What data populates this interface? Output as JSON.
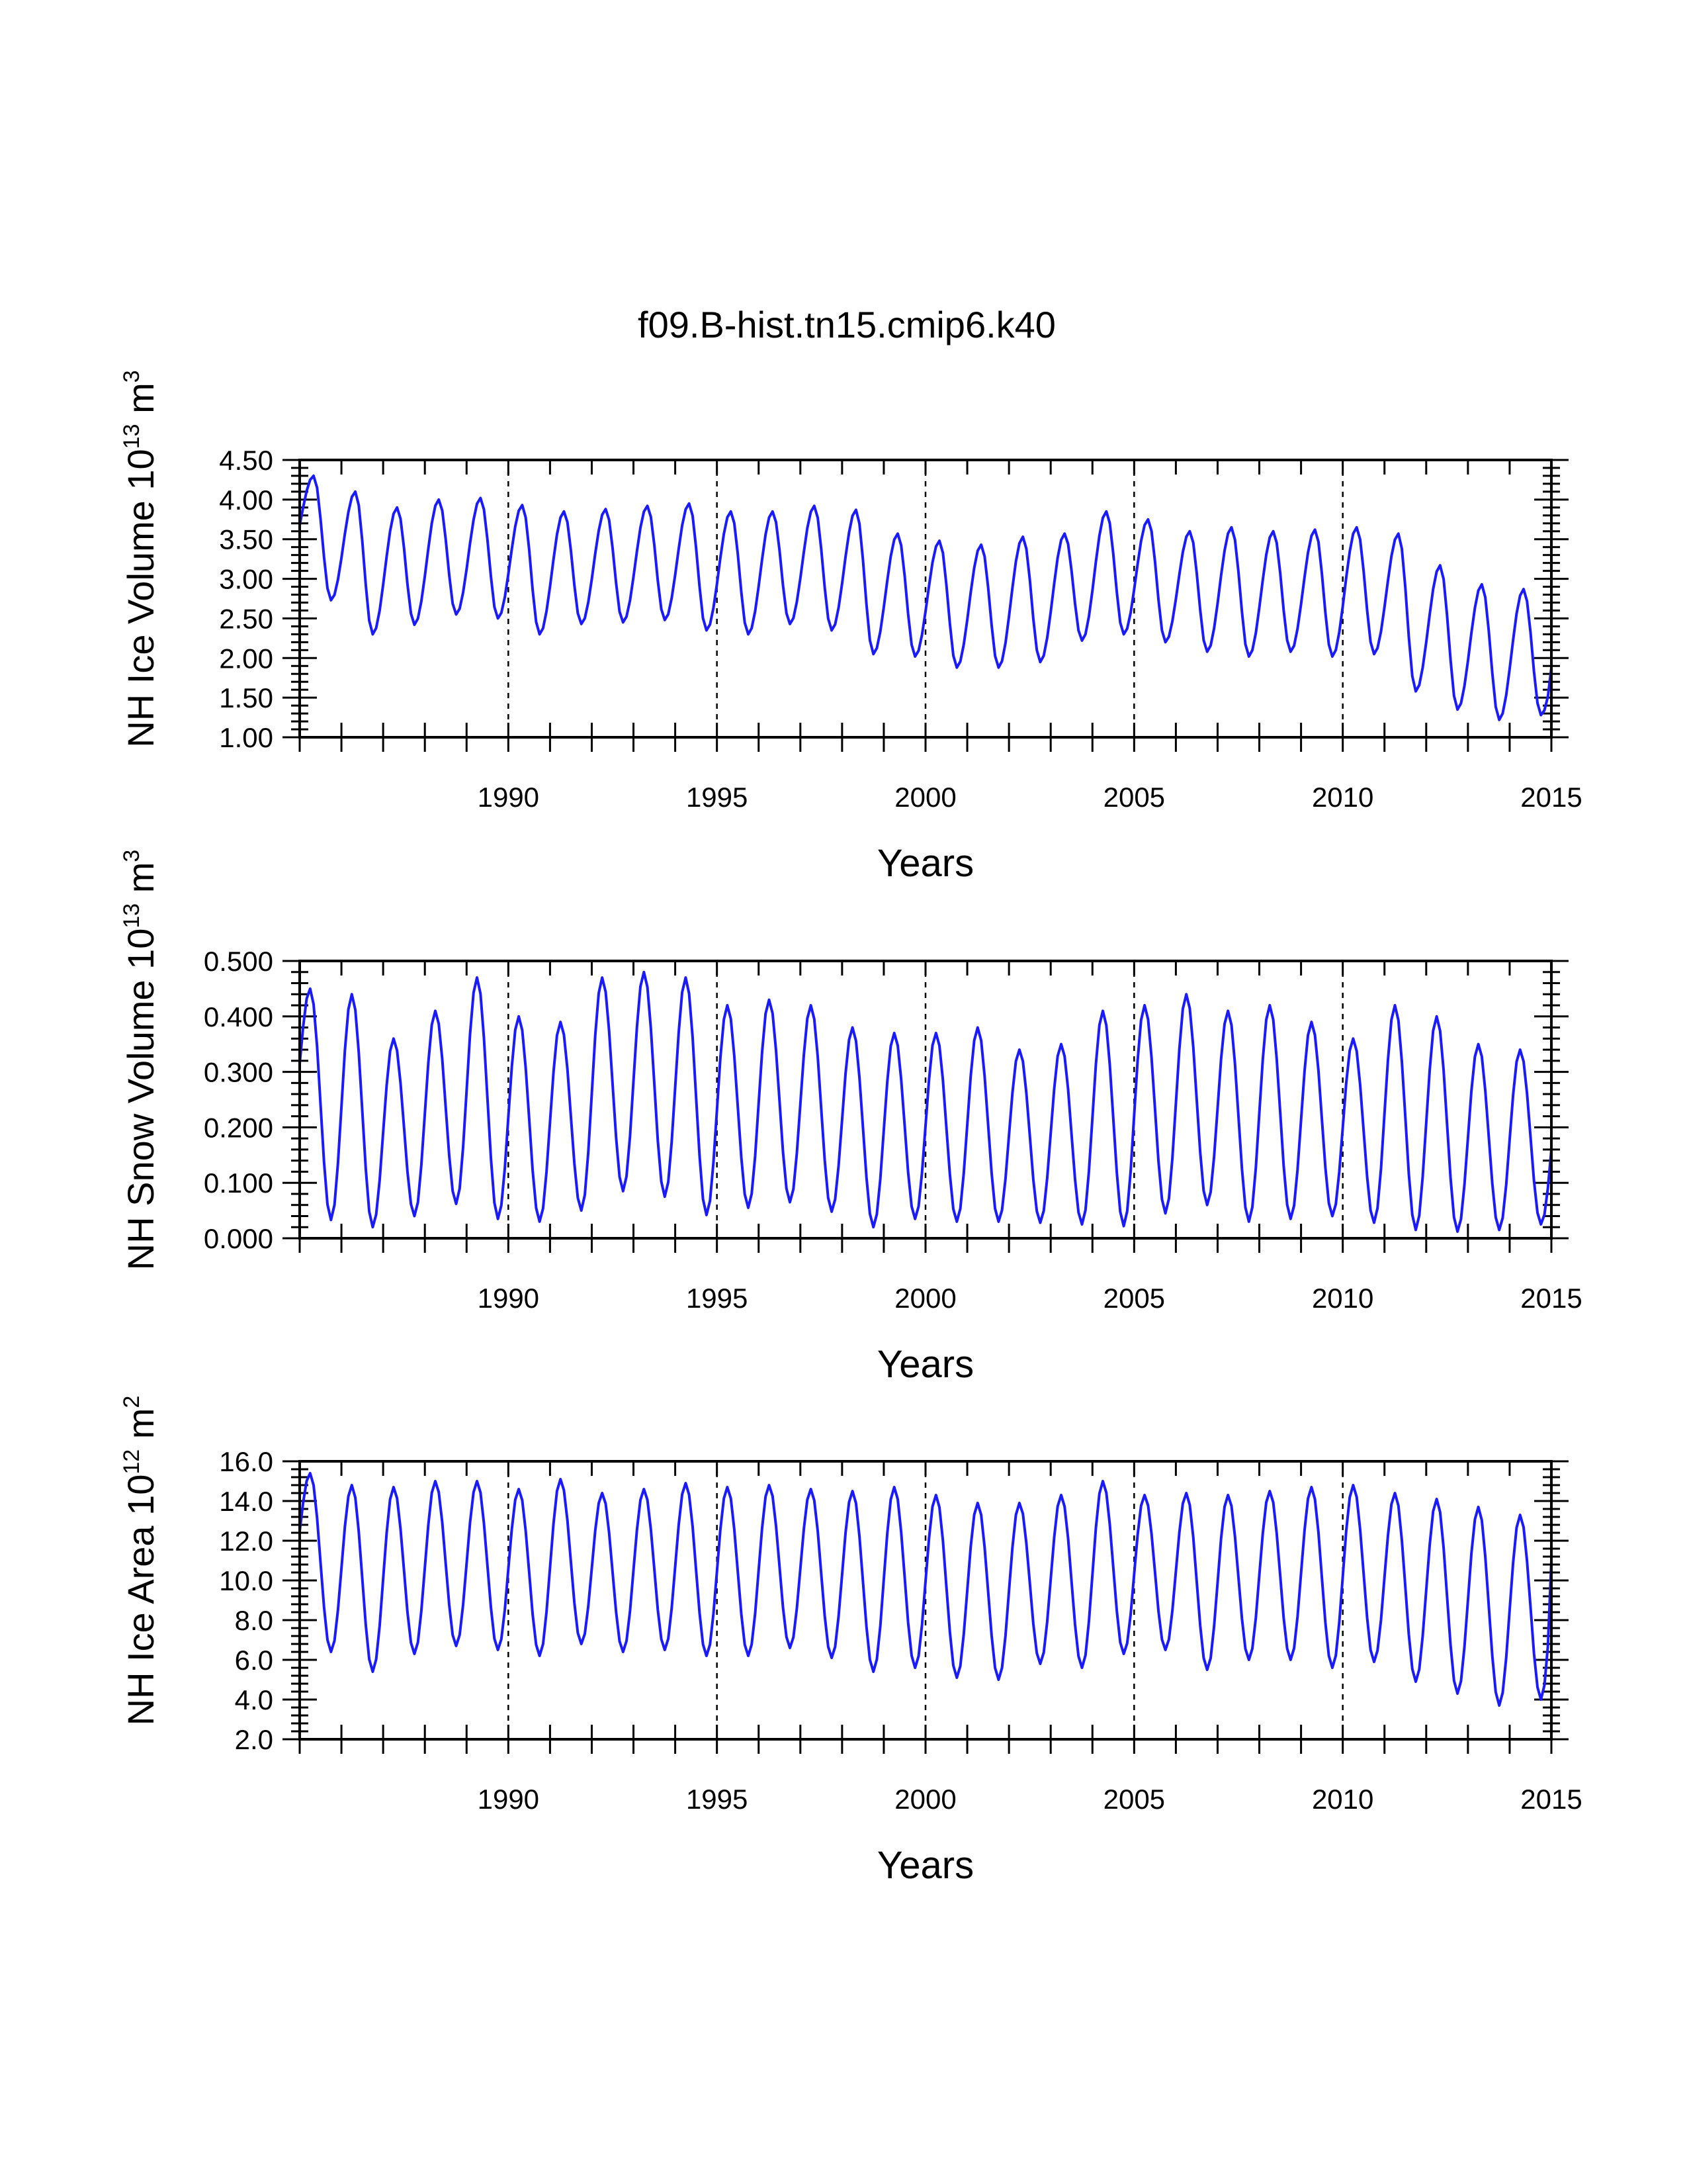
{
  "figure_title": "f09.B-hist.tn15.cmip6.k40",
  "colors": {
    "line": "#1a1aff",
    "axes": "#000000"
  },
  "chart_data": [
    {
      "type": "line",
      "ylabel": "NH Ice Volume 10",
      "ylabel_exponent": "13",
      "ylabel_unit": "m",
      "ylabel_unit_exponent": "3",
      "xlabel": "Years",
      "xlim": [
        1985,
        2015
      ],
      "ylim": [
        1.0,
        4.5
      ],
      "yticks": [
        "1.00",
        "1.50",
        "2.00",
        "2.50",
        "3.00",
        "3.50",
        "4.00",
        "4.50"
      ],
      "xticks": [
        "1990",
        "1995",
        "2000",
        "2005",
        "2010",
        "2015"
      ],
      "grid_years": [
        1990,
        1995,
        2000,
        2005,
        2010
      ],
      "series": [
        {
          "name": "NH Ice Volume",
          "start_year": 1985,
          "peak_month": 4,
          "maxima": [
            4.3,
            4.1,
            3.9,
            4.0,
            4.02,
            3.93,
            3.85,
            3.88,
            3.92,
            3.95,
            3.85,
            3.85,
            3.92,
            3.87,
            3.57,
            3.48,
            3.43,
            3.53,
            3.57,
            3.85,
            3.75,
            3.6,
            3.65,
            3.6,
            3.62,
            3.65,
            3.57,
            3.17,
            2.93,
            2.87
          ],
          "minima": [
            2.73,
            2.3,
            2.42,
            2.55,
            2.5,
            2.3,
            2.43,
            2.45,
            2.48,
            2.35,
            2.3,
            2.43,
            2.35,
            2.05,
            2.02,
            1.88,
            1.88,
            1.95,
            2.22,
            2.3,
            2.2,
            2.08,
            2.02,
            2.08,
            2.02,
            2.05,
            1.58,
            1.35,
            1.22,
            1.28
          ],
          "end_value": 1.88
        }
      ]
    },
    {
      "type": "line",
      "ylabel": "NH Snow Volume 10",
      "ylabel_exponent": "13",
      "ylabel_unit": "m",
      "ylabel_unit_exponent": "3",
      "xlabel": "Years",
      "xlim": [
        1985,
        2015
      ],
      "ylim": [
        0.0,
        0.5
      ],
      "yticks": [
        "0.000",
        "0.100",
        "0.200",
        "0.300",
        "0.400",
        "0.500"
      ],
      "xticks": [
        "1990",
        "1995",
        "2000",
        "2005",
        "2010",
        "2015"
      ],
      "grid_years": [
        1990,
        1995,
        2000,
        2005,
        2010
      ],
      "series": [
        {
          "name": "NH Snow Volume",
          "start_year": 1985,
          "peak_month": 3,
          "maxima": [
            0.45,
            0.44,
            0.36,
            0.41,
            0.47,
            0.4,
            0.39,
            0.47,
            0.48,
            0.47,
            0.42,
            0.43,
            0.42,
            0.38,
            0.37,
            0.37,
            0.38,
            0.34,
            0.35,
            0.41,
            0.42,
            0.44,
            0.41,
            0.42,
            0.39,
            0.36,
            0.42,
            0.4,
            0.35,
            0.34
          ],
          "minima": [
            0.033,
            0.02,
            0.04,
            0.062,
            0.035,
            0.03,
            0.05,
            0.085,
            0.075,
            0.042,
            0.055,
            0.065,
            0.048,
            0.02,
            0.035,
            0.03,
            0.03,
            0.028,
            0.025,
            0.022,
            0.045,
            0.06,
            0.03,
            0.035,
            0.04,
            0.028,
            0.015,
            0.012,
            0.015,
            0.025
          ],
          "end_value": 0.16
        }
      ]
    },
    {
      "type": "line",
      "ylabel": "NH Ice Area 10",
      "ylabel_exponent": "12",
      "ylabel_unit": "m",
      "ylabel_unit_exponent": "2",
      "xlabel": "Years",
      "xlim": [
        1985,
        2015
      ],
      "ylim": [
        2.0,
        16.0
      ],
      "yticks": [
        "2.0",
        "4.0",
        "6.0",
        "8.0",
        "10.0",
        "12.0",
        "14.0",
        "16.0"
      ],
      "xticks": [
        "1990",
        "1995",
        "2000",
        "2005",
        "2010",
        "2015"
      ],
      "grid_years": [
        1990,
        1995,
        2000,
        2005,
        2010
      ],
      "series": [
        {
          "name": "NH Ice Area",
          "start_year": 1985,
          "peak_month": 3,
          "maxima": [
            15.4,
            14.8,
            14.7,
            15.0,
            15.0,
            14.6,
            15.1,
            14.4,
            14.6,
            14.9,
            14.7,
            14.8,
            14.6,
            14.5,
            14.7,
            14.3,
            13.9,
            13.9,
            14.3,
            15.0,
            14.3,
            14.4,
            14.3,
            14.5,
            14.7,
            14.8,
            14.4,
            14.1,
            13.7,
            13.3
          ],
          "minima": [
            6.4,
            5.4,
            6.3,
            6.7,
            6.5,
            6.2,
            6.8,
            6.4,
            6.5,
            6.2,
            6.2,
            6.6,
            6.1,
            5.4,
            5.6,
            5.1,
            5.0,
            5.8,
            5.6,
            6.3,
            6.5,
            5.5,
            6.0,
            6.0,
            5.6,
            5.9,
            4.9,
            4.3,
            3.7,
            4.0
          ],
          "end_value": 11.0
        }
      ]
    }
  ]
}
